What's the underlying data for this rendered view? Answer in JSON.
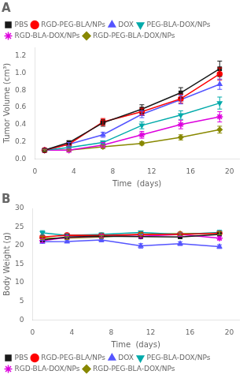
{
  "chart_data": [
    {
      "type": "line",
      "title": "A",
      "xlabel": "Time  (days)",
      "ylabel": "Tumor Volume (cm³)",
      "xlim": [
        0,
        21
      ],
      "ylim": [
        0.0,
        1.3
      ],
      "xticks": [
        0,
        4,
        8,
        12,
        16,
        20
      ],
      "yticks": [
        {
          "value": 0.0,
          "label": "0.0"
        },
        {
          "value": 0.2,
          "label": "0.2"
        },
        {
          "value": 0.4,
          "label": "0.4"
        },
        {
          "value": 0.6,
          "label": "0.6"
        },
        {
          "value": 0.8,
          "label": "0.8"
        },
        {
          "value": 1.0,
          "label": "1.0"
        },
        {
          "value": 1.2,
          "label": "1.2"
        }
      ],
      "grid": false,
      "legend": "upper left",
      "x": [
        1,
        3.5,
        7,
        11,
        15,
        19
      ],
      "series": [
        {
          "name": "PBS",
          "color": "#1a1a1a",
          "marker": "square",
          "values": [
            0.1,
            0.19,
            0.42,
            0.58,
            0.77,
            1.05
          ],
          "yerr": [
            0.01,
            0.02,
            0.04,
            0.05,
            0.06,
            0.09
          ]
        },
        {
          "name": "RGD-PEG-BLA/NPs",
          "color": "#ff0000",
          "marker": "circle",
          "values": [
            0.1,
            0.17,
            0.43,
            0.55,
            0.7,
            0.99
          ],
          "yerr": [
            0.01,
            0.02,
            0.04,
            0.04,
            0.05,
            0.07
          ]
        },
        {
          "name": "DOX",
          "color": "#5555ff",
          "marker": "triangle-up",
          "values": [
            0.1,
            0.17,
            0.28,
            0.52,
            0.69,
            0.87
          ],
          "yerr": [
            0.01,
            0.02,
            0.03,
            0.04,
            0.05,
            0.06
          ]
        },
        {
          "name": "PEG-BLA-DOX/NPs",
          "color": "#00aaaa",
          "marker": "triangle-down",
          "values": [
            0.1,
            0.13,
            0.19,
            0.39,
            0.51,
            0.65
          ],
          "yerr": [
            0.01,
            0.01,
            0.02,
            0.04,
            0.05,
            0.07
          ]
        },
        {
          "name": "RGD-BLA-DOX/NPs",
          "color": "#dd00dd",
          "marker": "star",
          "values": [
            0.1,
            0.1,
            0.16,
            0.28,
            0.4,
            0.49
          ],
          "yerr": [
            0.01,
            0.02,
            0.03,
            0.04,
            0.05,
            0.06
          ]
        },
        {
          "name": "RGD-PEG-BLA-DOX/NPs",
          "color": "#888800",
          "marker": "diamond",
          "values": [
            0.1,
            0.1,
            0.14,
            0.18,
            0.25,
            0.34
          ],
          "yerr": [
            0.01,
            0.01,
            0.02,
            0.02,
            0.03,
            0.04
          ]
        }
      ]
    },
    {
      "type": "line",
      "title": "B",
      "xlabel": "Time  (days)",
      "ylabel": "Body Weight (g)",
      "xlim": [
        0,
        21
      ],
      "ylim": [
        0,
        30
      ],
      "xticks": [
        0,
        4,
        8,
        12,
        16,
        20
      ],
      "yticks": [
        0,
        5,
        10,
        15,
        20,
        25,
        30
      ],
      "grid": false,
      "legend": "lower left",
      "x": [
        1,
        3.5,
        7,
        11,
        15,
        19
      ],
      "series": [
        {
          "name": "PBS",
          "color": "#1a1a1a",
          "marker": "square",
          "values": [
            21.5,
            22.3,
            22.5,
            22.4,
            22.3,
            23.0
          ],
          "yerr": [
            0.3,
            0.4,
            0.4,
            0.4,
            0.4,
            0.4
          ]
        },
        {
          "name": "RGD-PEG-BLA/NPs",
          "color": "#ff0000",
          "marker": "circle",
          "values": [
            22.3,
            22.8,
            22.7,
            23.0,
            23.0,
            23.3
          ],
          "yerr": [
            0.4,
            0.5,
            0.4,
            0.4,
            0.5,
            0.4
          ]
        },
        {
          "name": "DOX",
          "color": "#5555ff",
          "marker": "triangle-up",
          "values": [
            21.0,
            21.1,
            21.5,
            19.9,
            20.5,
            19.7
          ],
          "yerr": [
            0.4,
            0.4,
            0.5,
            0.6,
            0.5,
            0.5
          ]
        },
        {
          "name": "PEG-BLA-DOX/NPs",
          "color": "#00aaaa",
          "marker": "triangle-down",
          "values": [
            23.4,
            22.7,
            23.0,
            23.5,
            23.0,
            23.5
          ],
          "yerr": [
            0.6,
            0.4,
            0.4,
            0.4,
            0.4,
            0.6
          ]
        },
        {
          "name": "RGD-BLA-DOX/NPs",
          "color": "#dd00dd",
          "marker": "star",
          "values": [
            21.3,
            22.2,
            22.5,
            22.5,
            23.0,
            22.0
          ],
          "yerr": [
            0.5,
            0.5,
            0.4,
            0.4,
            0.5,
            0.5
          ]
        },
        {
          "name": "RGD-PEG-BLA-DOX/NPs",
          "color": "#888800",
          "marker": "diamond",
          "values": [
            22.0,
            22.0,
            22.3,
            23.0,
            23.2,
            23.3
          ],
          "yerr": [
            0.4,
            0.4,
            0.4,
            0.4,
            0.4,
            0.4
          ]
        }
      ]
    }
  ]
}
